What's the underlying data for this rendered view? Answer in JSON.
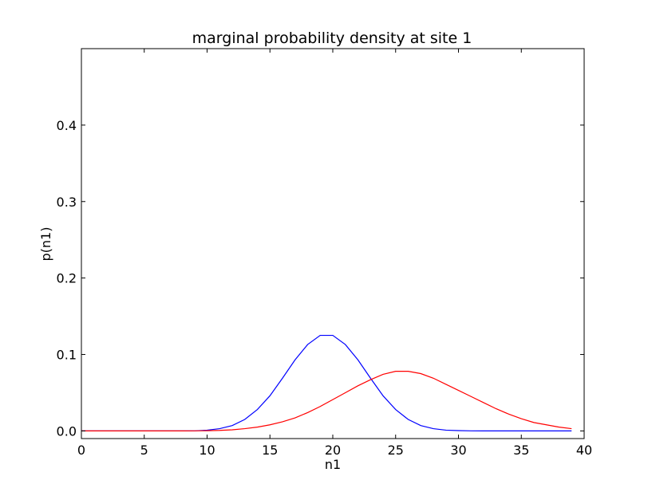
{
  "chart_data": {
    "type": "line",
    "title": "marginal probability density at site 1",
    "xlabel": "n1",
    "ylabel": "p(n1)",
    "xlim": [
      0,
      40
    ],
    "ylim": [
      -0.01,
      0.5
    ],
    "xticks": [
      "0",
      "5",
      "10",
      "15",
      "20",
      "25",
      "30",
      "35",
      "40"
    ],
    "yticks": [
      "0.0",
      "0.1",
      "0.2",
      "0.3",
      "0.4"
    ],
    "grid": false,
    "legend": "none",
    "x": [
      0,
      1,
      2,
      3,
      4,
      5,
      6,
      7,
      8,
      9,
      10,
      11,
      12,
      13,
      14,
      15,
      16,
      17,
      18,
      19,
      20,
      21,
      22,
      23,
      24,
      25,
      26,
      27,
      28,
      29,
      30,
      31,
      32,
      33,
      34,
      35,
      36,
      37,
      38,
      39
    ],
    "series": [
      {
        "color": "#0000ff",
        "values": [
          0,
          0,
          0,
          0,
          0,
          0,
          0,
          0,
          0,
          0.0001,
          0.001,
          0.003,
          0.007,
          0.015,
          0.028,
          0.046,
          0.069,
          0.093,
          0.113,
          0.125,
          0.125,
          0.113,
          0.093,
          0.069,
          0.046,
          0.028,
          0.015,
          0.007,
          0.003,
          0.001,
          0.0004,
          0.0001,
          0,
          0,
          0,
          0,
          0,
          0,
          0,
          0
        ]
      },
      {
        "color": "#ff0000",
        "values": [
          0,
          0,
          0,
          0,
          0,
          0,
          0,
          0,
          0,
          0.0001,
          0.0003,
          0.0007,
          0.0015,
          0.003,
          0.005,
          0.008,
          0.012,
          0.017,
          0.024,
          0.032,
          0.041,
          0.05,
          0.059,
          0.067,
          0.074,
          0.078,
          0.078,
          0.075,
          0.069,
          0.061,
          0.053,
          0.045,
          0.037,
          0.029,
          0.022,
          0.016,
          0.011,
          0.008,
          0.005,
          0.003
        ]
      }
    ]
  }
}
